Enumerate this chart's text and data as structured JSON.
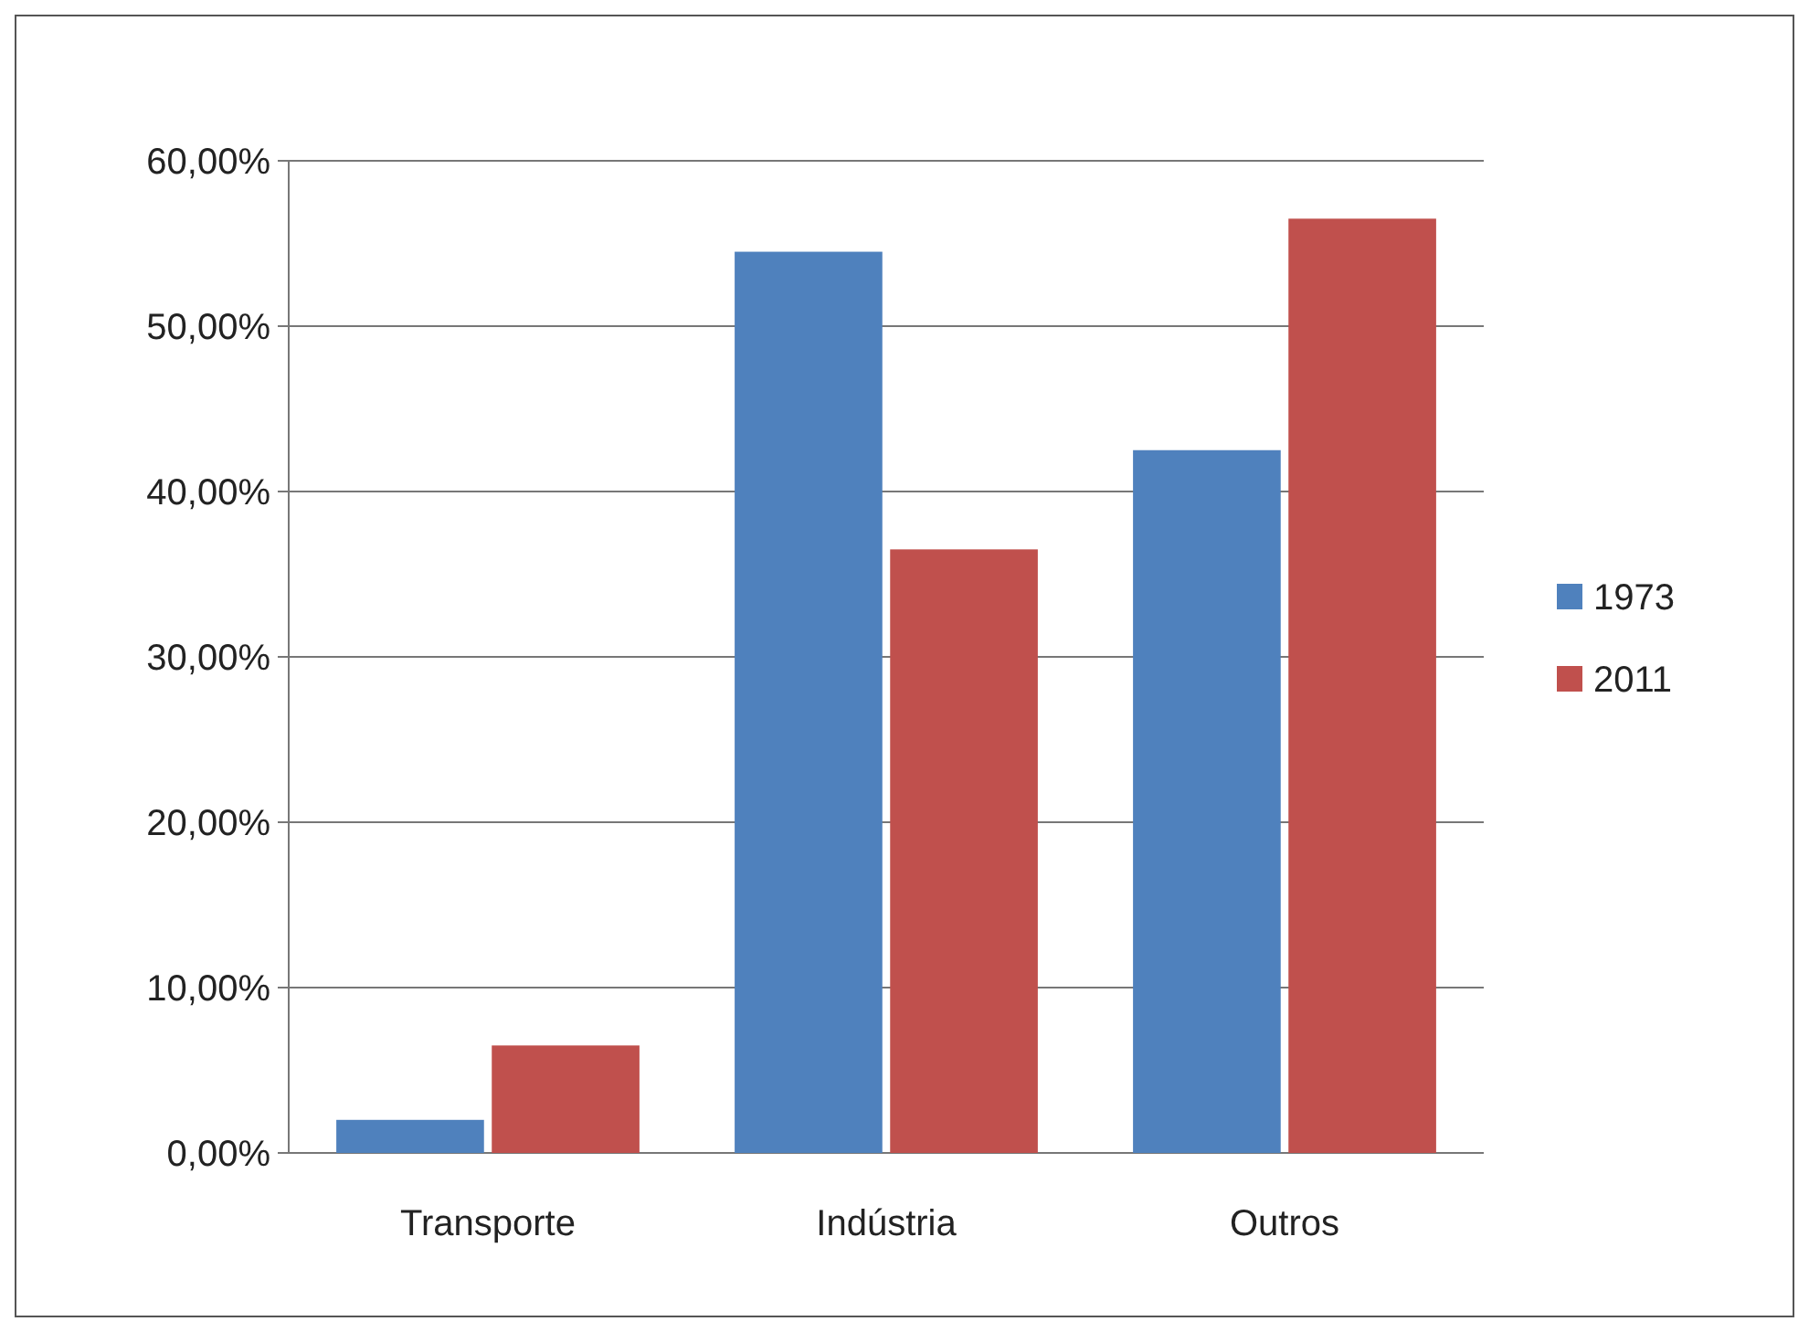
{
  "chart_data": {
    "type": "bar",
    "categories": [
      "Transporte",
      "Indústria",
      "Outros"
    ],
    "series": [
      {
        "name": "1973",
        "color": "#4f81bd",
        "values": [
          2,
          54.5,
          42.5
        ]
      },
      {
        "name": "2011",
        "color": "#c0504d",
        "values": [
          6.5,
          36.5,
          56.5
        ]
      }
    ],
    "ylim": [
      0,
      60
    ],
    "yticks": [
      {
        "value": 0,
        "label": "0,00%"
      },
      {
        "value": 10,
        "label": "10,00%"
      },
      {
        "value": 20,
        "label": "20,00%"
      },
      {
        "value": 30,
        "label": "30,00%"
      },
      {
        "value": 40,
        "label": "40,00%"
      },
      {
        "value": 50,
        "label": "50,00%"
      },
      {
        "value": 60,
        "label": "60,00%"
      }
    ],
    "grid": "y",
    "legend": "right"
  }
}
